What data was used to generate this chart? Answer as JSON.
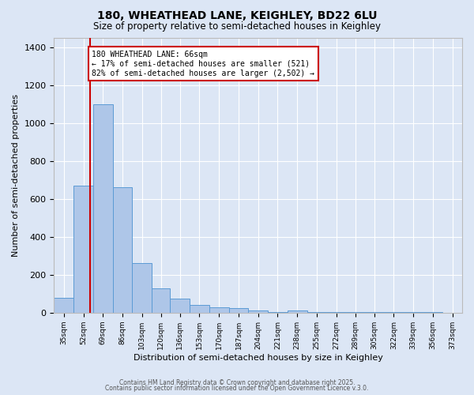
{
  "title": "180, WHEATHEAD LANE, KEIGHLEY, BD22 6LU",
  "subtitle": "Size of property relative to semi-detached houses in Keighley",
  "xlabel": "Distribution of semi-detached houses by size in Keighley",
  "ylabel": "Number of semi-detached properties",
  "bin_labels": [
    "35sqm",
    "52sqm",
    "69sqm",
    "86sqm",
    "103sqm",
    "120sqm",
    "136sqm",
    "153sqm",
    "170sqm",
    "187sqm",
    "204sqm",
    "221sqm",
    "238sqm",
    "255sqm",
    "272sqm",
    "289sqm",
    "305sqm",
    "322sqm",
    "339sqm",
    "356sqm",
    "373sqm"
  ],
  "bar_heights": [
    80,
    670,
    1100,
    660,
    260,
    130,
    75,
    40,
    30,
    25,
    10,
    5,
    12,
    5,
    5,
    3,
    3,
    3,
    2,
    2,
    0
  ],
  "bin_edges": [
    35,
    52,
    69,
    86,
    103,
    120,
    136,
    153,
    170,
    187,
    204,
    221,
    238,
    255,
    272,
    289,
    305,
    322,
    339,
    356,
    373,
    390
  ],
  "bar_color": "#aec6e8",
  "bar_edge_color": "#5b9bd5",
  "red_line_x": 66,
  "annotation_title": "180 WHEATHEAD LANE: 66sqm",
  "annotation_line1": "← 17% of semi-detached houses are smaller (521)",
  "annotation_line2": "82% of semi-detached houses are larger (2,502) →",
  "annotation_box_color": "#ffffff",
  "annotation_box_edge": "#cc0000",
  "red_line_color": "#cc0000",
  "ylim": [
    0,
    1450
  ],
  "xlim_min": 35,
  "xlim_max": 390,
  "background_color": "#dce6f5",
  "plot_bg_color": "#dce6f5",
  "grid_color": "#ffffff",
  "footer1": "Contains HM Land Registry data © Crown copyright and database right 2025.",
  "footer2": "Contains public sector information licensed under the Open Government Licence v.3.0."
}
